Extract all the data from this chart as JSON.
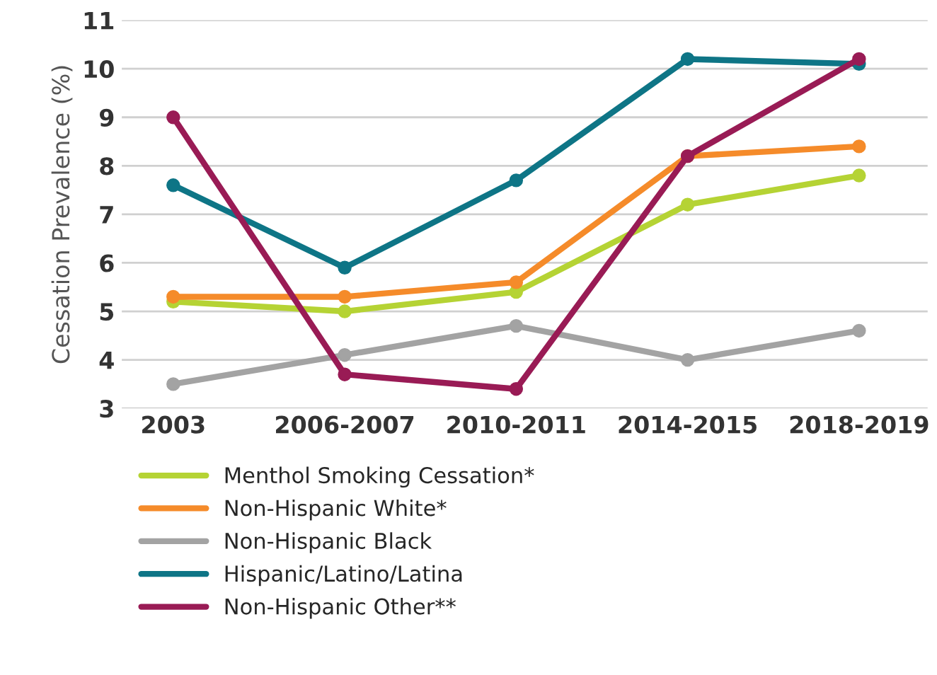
{
  "chart_data": {
    "type": "line",
    "ylabel": "Cessation Prevalence (%)",
    "categories": [
      "2003",
      "2006-2007",
      "2010-2011",
      "2014-2015",
      "2018-2019"
    ],
    "series": [
      {
        "name": "Menthol Smoking Cessation*",
        "color": "#b5d334",
        "values": [
          5.2,
          5.0,
          5.4,
          7.2,
          7.8
        ]
      },
      {
        "name": "Non-Hispanic White*",
        "color": "#f58b2a",
        "values": [
          5.3,
          5.3,
          5.6,
          8.2,
          8.4
        ]
      },
      {
        "name": "Non-Hispanic Black",
        "color": "#a3a3a3",
        "values": [
          3.5,
          4.1,
          4.7,
          4.0,
          4.6
        ]
      },
      {
        "name": "Hispanic/Latino/Latina",
        "color": "#0e7586",
        "values": [
          7.6,
          5.9,
          7.7,
          10.2,
          10.1
        ]
      },
      {
        "name": "Non-Hispanic Other**",
        "color": "#991b55",
        "values": [
          9.0,
          3.7,
          3.4,
          8.2,
          10.2
        ]
      }
    ],
    "ylim": [
      3,
      11
    ],
    "yticks": [
      3,
      4,
      5,
      6,
      7,
      8,
      9,
      10,
      11
    ],
    "grid": "y",
    "legend": "bottom",
    "marker": "circle",
    "line_style": "solid"
  }
}
